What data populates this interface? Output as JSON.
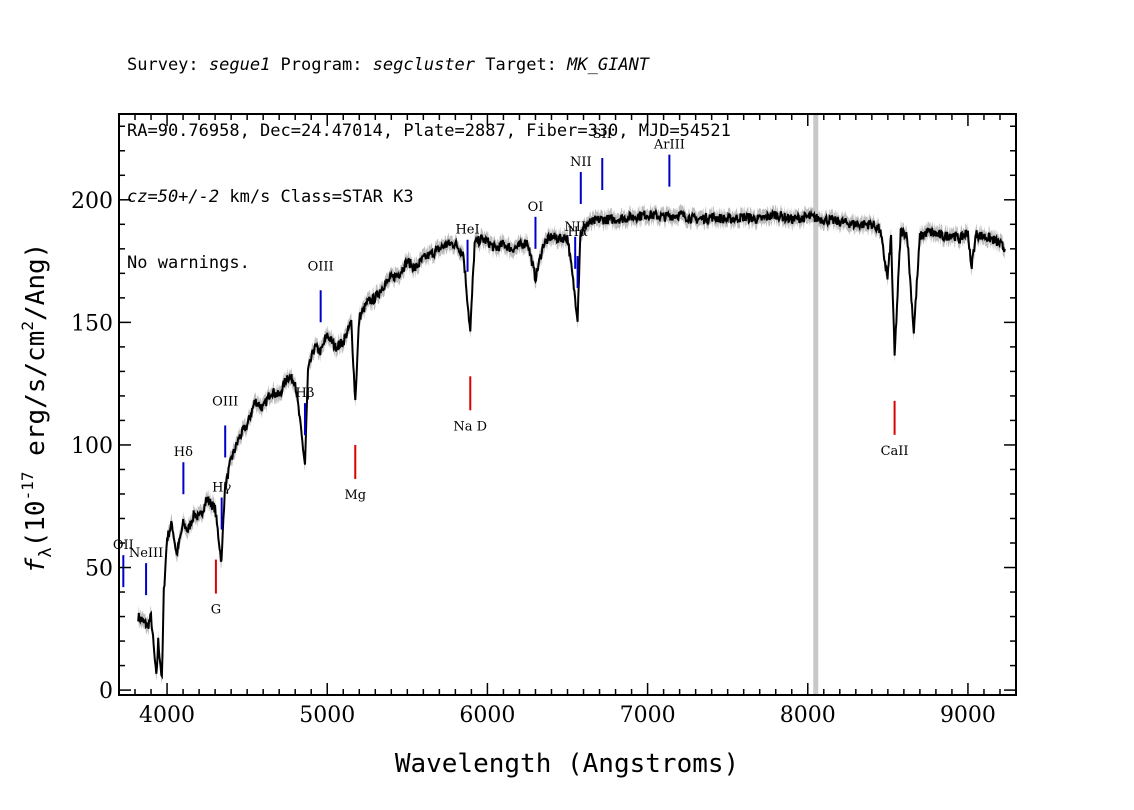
{
  "header": {
    "line1": {
      "survey_label": "Survey: ",
      "survey": "segue1",
      "program_label": " Program: ",
      "program": "segcluster",
      "target_label": " Target: ",
      "target": "MK_GIANT"
    },
    "line2": "RA=90.76958, Dec=24.47014, Plate=2887, Fiber=330, MJD=54521",
    "line3": {
      "cz": "cz=50+/-2",
      "rest": " km/s Class=STAR K3"
    },
    "line4": "No warnings."
  },
  "chart_data": {
    "type": "line",
    "xlabel": "Wavelength (Angstroms)",
    "ylabel_parts": {
      "f": "f",
      "sub": "λ",
      "pre": "(10",
      "exp": "-17",
      "mid": " erg/s/cm",
      "exp2": "2",
      "post": "/Ang)"
    },
    "xlim": [
      3700,
      9300
    ],
    "ylim": [
      -2,
      235
    ],
    "x_ticks": [
      4000,
      5000,
      6000,
      7000,
      8000,
      9000
    ],
    "y_ticks": [
      0,
      50,
      100,
      150,
      200
    ],
    "vertical_marker_x": 8050,
    "colors": {
      "spectrum": "#000000",
      "error": "#bdbdbd",
      "emission": "#0000cc",
      "absorption": "#dd0000",
      "marker": "#c8c8c8"
    },
    "series": [
      {
        "x": [
          3820,
          3850,
          3880,
          3900,
          3920,
          3933,
          3945,
          3960,
          3968,
          3980,
          4000,
          4030,
          4060,
          4101,
          4130,
          4170,
          4200,
          4250,
          4300,
          4340,
          4360,
          4400,
          4450,
          4500,
          4550,
          4600,
          4650,
          4700,
          4750,
          4800,
          4861,
          4880,
          4920,
          4960,
          5000,
          5050,
          5100,
          5150,
          5175,
          5200,
          5250,
          5300,
          5350,
          5400,
          5450,
          5500,
          5550,
          5600,
          5650,
          5700,
          5750,
          5800,
          5850,
          5893,
          5920,
          5960,
          6000,
          6050,
          6100,
          6150,
          6200,
          6250,
          6300,
          6350,
          6400,
          6450,
          6500,
          6563,
          6580,
          6620,
          6700,
          6800,
          6900,
          7000,
          7100,
          7200,
          7300,
          7400,
          7500,
          7600,
          7700,
          7800,
          7900,
          8000,
          8100,
          8200,
          8300,
          8400,
          8450,
          8498,
          8520,
          8542,
          8580,
          8620,
          8662,
          8700,
          8750,
          8800,
          8850,
          8900,
          8950,
          9000,
          9020,
          9050,
          9100,
          9150,
          9200,
          9230
        ],
        "y": [
          30,
          28,
          26,
          30,
          15,
          5,
          20,
          10,
          4,
          40,
          62,
          68,
          55,
          68,
          65,
          72,
          70,
          78,
          74,
          52,
          82,
          94,
          103,
          108,
          118,
          115,
          122,
          120,
          128,
          126,
          92,
          130,
          140,
          138,
          145,
          140,
          142,
          150,
          118,
          152,
          158,
          160,
          165,
          168,
          170,
          175,
          172,
          176,
          178,
          180,
          182,
          182,
          178,
          146,
          182,
          184,
          183,
          180,
          182,
          180,
          181,
          183,
          168,
          182,
          185,
          184,
          185,
          152,
          186,
          190,
          192,
          192,
          193,
          194,
          193,
          194,
          192,
          193,
          192,
          193,
          192,
          194,
          192,
          193,
          192,
          191,
          190,
          190,
          188,
          168,
          185,
          136,
          187,
          186,
          146,
          185,
          187,
          186,
          185,
          186,
          184,
          187,
          172,
          186,
          185,
          184,
          182,
          180
        ]
      }
    ],
    "line_labels": [
      {
        "text": "OII",
        "x": 3727,
        "kind": "emission"
      },
      {
        "text": "NeIII",
        "x": 3869,
        "kind": "emission"
      },
      {
        "text": "Hδ",
        "x": 4102,
        "kind": "emission"
      },
      {
        "text": "Hγ",
        "x": 4341,
        "kind": "emission"
      },
      {
        "text": "OIII",
        "x": 4363,
        "kind": "emission"
      },
      {
        "text": "Hβ",
        "x": 4861,
        "kind": "emission"
      },
      {
        "text": "OIII",
        "x": 4959,
        "kind": "emission"
      },
      {
        "text": "HeI",
        "x": 5876,
        "kind": "emission"
      },
      {
        "text": "OI",
        "x": 6300,
        "kind": "emission"
      },
      {
        "text": "NII",
        "x": 6548,
        "kind": "emission"
      },
      {
        "text": "Hα",
        "x": 6563,
        "kind": "emission"
      },
      {
        "text": "NII",
        "x": 6583,
        "kind": "emission"
      },
      {
        "text": "SII",
        "x": 6717,
        "kind": "emission"
      },
      {
        "text": "ArIII",
        "x": 7136,
        "kind": "emission"
      },
      {
        "text": "G",
        "x": 4305,
        "kind": "absorption"
      },
      {
        "text": "Mg",
        "x": 5175,
        "kind": "absorption"
      },
      {
        "text": "Na D",
        "x": 5893,
        "kind": "absorption"
      },
      {
        "text": "CaII",
        "x": 8542,
        "kind": "absorption"
      }
    ]
  }
}
